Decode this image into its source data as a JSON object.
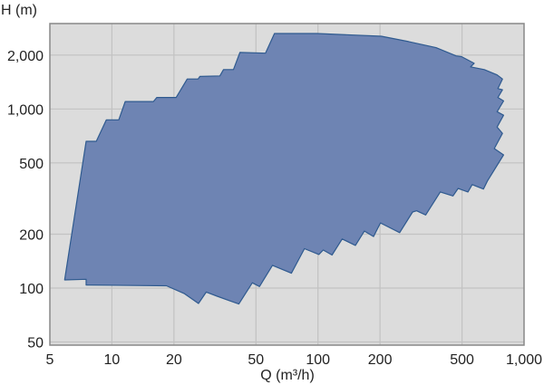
{
  "chart_data": {
    "type": "area",
    "title": "",
    "xlabel": "Q (m³/h)",
    "ylabel": "H (m)",
    "x_scale": "log",
    "y_scale": "log",
    "xlim": [
      5,
      1000
    ],
    "ylim": [
      48,
      3000
    ],
    "grid": true,
    "x_ticks": [
      5,
      10,
      20,
      50,
      100,
      200,
      500,
      1000
    ],
    "x_tick_labels": [
      "5",
      "10",
      "20",
      "50",
      "100",
      "200",
      "500",
      "1,000"
    ],
    "y_ticks": [
      50,
      100,
      200,
      500,
      1000,
      2000
    ],
    "y_tick_labels": [
      "50",
      "100",
      "200",
      "500",
      "1,000",
      "2,000"
    ],
    "colors": {
      "fill": "#6e84b3",
      "outline": "#2f5a8f",
      "plot_background": "#dcdcdc",
      "grid": "#c2c2c2"
    },
    "envelope": [
      [
        5.9,
        111
      ],
      [
        7.5,
        660
      ],
      [
        8.4,
        660
      ],
      [
        9.4,
        870
      ],
      [
        10.8,
        870
      ],
      [
        11.6,
        1100
      ],
      [
        15.9,
        1100
      ],
      [
        16.5,
        1160
      ],
      [
        20.5,
        1160
      ],
      [
        23.2,
        1470
      ],
      [
        26.2,
        1470
      ],
      [
        26.7,
        1520
      ],
      [
        33.4,
        1530
      ],
      [
        34.8,
        1660
      ],
      [
        38.9,
        1660
      ],
      [
        41.8,
        2070
      ],
      [
        55.6,
        2050
      ],
      [
        61.5,
        2640
      ],
      [
        99,
        2640
      ],
      [
        203,
        2550
      ],
      [
        275,
        2380
      ],
      [
        374,
        2200
      ],
      [
        468,
        1980
      ],
      [
        497,
        1960
      ],
      [
        573,
        1800
      ],
      [
        550,
        1720
      ],
      [
        641,
        1660
      ],
      [
        740,
        1550
      ],
      [
        786,
        1470
      ],
      [
        747,
        1300
      ],
      [
        786,
        1280
      ],
      [
        747,
        1160
      ],
      [
        795,
        1110
      ],
      [
        740,
        966
      ],
      [
        795,
        923
      ],
      [
        740,
        793
      ],
      [
        786,
        731
      ],
      [
        717,
        601
      ],
      [
        795,
        554
      ],
      [
        664,
        396
      ],
      [
        635,
        357
      ],
      [
        560,
        378
      ],
      [
        534,
        344
      ],
      [
        479,
        360
      ],
      [
        452,
        327
      ],
      [
        392,
        344
      ],
      [
        333,
        256
      ],
      [
        301,
        270
      ],
      [
        288,
        266
      ],
      [
        249,
        204
      ],
      [
        201,
        231
      ],
      [
        186,
        194
      ],
      [
        168,
        208
      ],
      [
        152,
        173
      ],
      [
        131,
        188
      ],
      [
        117,
        153
      ],
      [
        106,
        163
      ],
      [
        101,
        154
      ],
      [
        86,
        166
      ],
      [
        74.3,
        121
      ],
      [
        60.1,
        134
      ],
      [
        52,
        102
      ],
      [
        48,
        107
      ],
      [
        41.3,
        81.5
      ],
      [
        32.4,
        90
      ],
      [
        28.7,
        95
      ],
      [
        26.3,
        82
      ],
      [
        22.5,
        93
      ],
      [
        18.4,
        103
      ],
      [
        7.5,
        104
      ],
      [
        7.5,
        112
      ]
    ]
  }
}
